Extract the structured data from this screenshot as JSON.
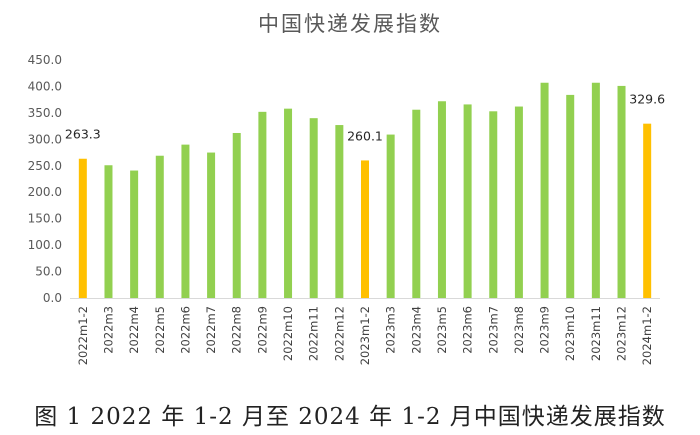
{
  "chart_data": {
    "type": "bar",
    "title": "中国快递发展指数",
    "caption": "图 1 2022 年 1-2 月至 2024 年 1-2 月中国快递发展指数",
    "xlabel": "",
    "ylabel": "",
    "ylim": [
      0,
      450
    ],
    "yticks": [
      "0.0",
      "50.0",
      "100.0",
      "150.0",
      "200.0",
      "250.0",
      "300.0",
      "350.0",
      "400.0",
      "450.0"
    ],
    "grid": false,
    "legend": "none",
    "colors": {
      "regular": "#92d050",
      "highlight": "#ffc000"
    },
    "categories": [
      "2022m1-2",
      "2022m3",
      "2022m4",
      "2022m5",
      "2022m6",
      "2022m7",
      "2022m8",
      "2022m9",
      "2022m10",
      "2022m11",
      "2022m12",
      "2023m1-2",
      "2023m3",
      "2023m4",
      "2023m5",
      "2023m6",
      "2023m7",
      "2023m8",
      "2023m9",
      "2023m10",
      "2023m11",
      "2023m12",
      "2024m1-2"
    ],
    "values": [
      263.3,
      251,
      241,
      269,
      290,
      275,
      312,
      352,
      358,
      340,
      327,
      260.1,
      309,
      356,
      372,
      366,
      353,
      362,
      407,
      384,
      407,
      401,
      329.6
    ],
    "highlighted": [
      "2022m1-2",
      "2023m1-2",
      "2024m1-2"
    ],
    "data_labels": [
      {
        "category": "2022m1-2",
        "text": "263.3"
      },
      {
        "category": "2023m1-2",
        "text": "260.1"
      },
      {
        "category": "2024m1-2",
        "text": "329.6"
      }
    ]
  }
}
